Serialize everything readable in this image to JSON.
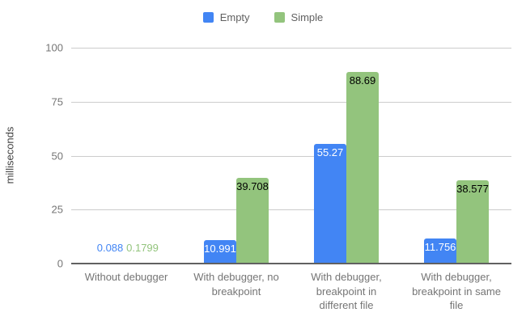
{
  "chart_data": {
    "type": "bar",
    "title": "",
    "xlabel": "",
    "ylabel": "milliseconds",
    "ylim": [
      0,
      100
    ],
    "yticks": [
      0,
      25,
      50,
      75,
      100
    ],
    "grid": true,
    "legend_position": "top",
    "categories": [
      "Without debugger",
      "With debugger, no breakpoint",
      "With debugger, breakpoint in different file",
      "With debugger, breakpoint in same file"
    ],
    "series": [
      {
        "name": "Empty",
        "color": "#4285f4",
        "values": [
          0.088,
          10.991,
          55.27,
          11.756
        ],
        "labels": [
          "0.088",
          "10.991",
          "55.27",
          "11.756"
        ],
        "inside_label_color": "#ffffff"
      },
      {
        "name": "Simple",
        "color": "#93c47d",
        "values": [
          0.1799,
          39.708,
          88.69,
          38.577
        ],
        "labels": [
          "0.1799",
          "39.708",
          "88.69",
          "38.577"
        ],
        "inside_label_color": "#000000"
      }
    ]
  }
}
